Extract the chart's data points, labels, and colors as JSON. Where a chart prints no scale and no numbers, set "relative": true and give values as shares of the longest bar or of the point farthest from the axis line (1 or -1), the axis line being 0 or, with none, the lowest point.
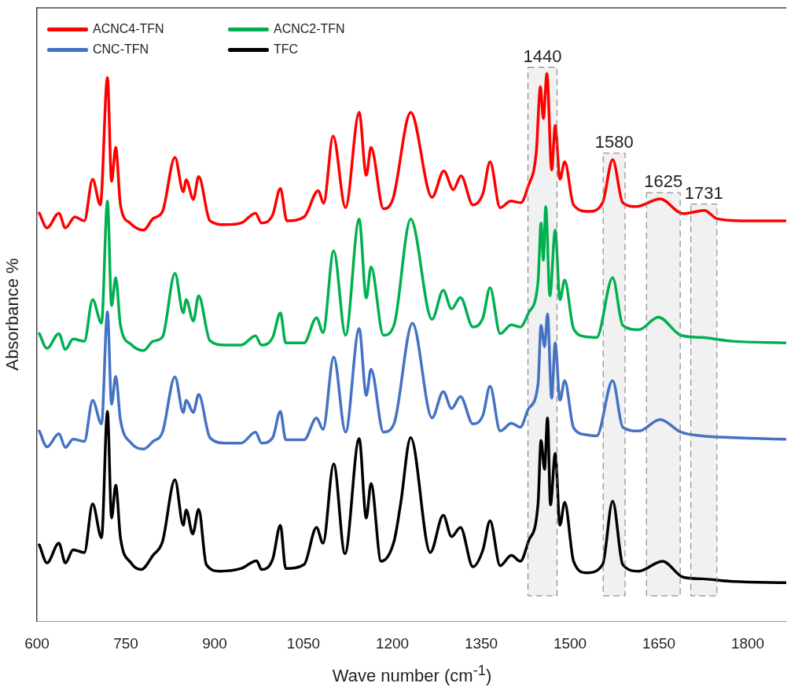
{
  "chart_data": {
    "type": "line",
    "relative": true,
    "xlabel": "Wave number (cm$^{-1}$)",
    "ylabel": "Absorbance %",
    "xlim": [
      600,
      1865
    ],
    "xticks": [
      600,
      750,
      900,
      1050,
      1200,
      1350,
      1500,
      1650,
      1800
    ],
    "legend": "top left",
    "grid": false,
    "marker": "none",
    "line_style": "solid",
    "bands": [
      {
        "axis": "x",
        "from": 1429,
        "to": 1478,
        "label": "1440"
      },
      {
        "axis": "x",
        "from": 1556,
        "to": 1593,
        "label": "1580"
      },
      {
        "axis": "x",
        "from": 1629,
        "to": 1686,
        "label": "1625"
      },
      {
        "axis": "x",
        "from": 1704,
        "to": 1748,
        "label": "1731"
      }
    ],
    "series": [
      {
        "name": "ACNC4-TFN",
        "color": "#ff0000",
        "x": [
          604,
          617,
          637,
          648,
          664,
          680,
          694,
          707,
          719,
          726,
          733,
          741,
          757,
          780,
          796,
          812,
          833,
          847,
          852,
          864,
          873,
          892,
          918,
          945,
          969,
          979,
          998,
          1011,
          1022,
          1051,
          1075,
          1084,
          1100,
          1121,
          1144,
          1156,
          1164,
          1185,
          1201,
          1231,
          1267,
          1287,
          1303,
          1316,
          1336,
          1353,
          1365,
          1382,
          1400,
          1417,
          1429,
          1443,
          1450,
          1455,
          1461,
          1469,
          1475,
          1483,
          1491,
          1506,
          1532,
          1555,
          1572,
          1589,
          1612,
          1652,
          1691,
          1727,
          1748,
          1793,
          1864
        ],
        "values": [
          0.745,
          0.718,
          0.745,
          0.718,
          0.738,
          0.731,
          0.807,
          0.76,
          0.993,
          0.803,
          0.865,
          0.76,
          0.727,
          0.714,
          0.735,
          0.748,
          0.847,
          0.784,
          0.806,
          0.77,
          0.812,
          0.731,
          0.724,
          0.727,
          0.745,
          0.727,
          0.742,
          0.79,
          0.731,
          0.738,
          0.786,
          0.763,
          0.886,
          0.755,
          0.929,
          0.814,
          0.865,
          0.753,
          0.771,
          0.929,
          0.774,
          0.822,
          0.788,
          0.813,
          0.76,
          0.781,
          0.839,
          0.755,
          0.767,
          0.764,
          0.793,
          0.856,
          0.976,
          0.918,
          1.0,
          0.824,
          0.905,
          0.807,
          0.839,
          0.76,
          0.748,
          0.764,
          0.843,
          0.764,
          0.757,
          0.771,
          0.744,
          0.75,
          0.735,
          0.731,
          0.731
        ]
      },
      {
        "name": "ACNC2-TFN",
        "color": "#00b050",
        "x": [
          604,
          617,
          637,
          648,
          661,
          680,
          694,
          709,
          719,
          726,
          733,
          741,
          759,
          780,
          796,
          812,
          833,
          847,
          852,
          864,
          873,
          892,
          918,
          945,
          969,
          979,
          998,
          1011,
          1020,
          1051,
          1072,
          1083,
          1101,
          1121,
          1144,
          1156,
          1164,
          1185,
          1203,
          1231,
          1267,
          1286,
          1300,
          1315,
          1336,
          1353,
          1365,
          1382,
          1401,
          1416,
          1430,
          1446,
          1451,
          1455,
          1459,
          1466,
          1475,
          1483,
          1491,
          1506,
          1528,
          1545,
          1572,
          1589,
          1616,
          1649,
          1687,
          1722,
          1775,
          1864
        ],
        "values": [
          0.525,
          0.498,
          0.525,
          0.496,
          0.515,
          0.511,
          0.587,
          0.544,
          0.767,
          0.576,
          0.627,
          0.54,
          0.505,
          0.494,
          0.511,
          0.519,
          0.635,
          0.563,
          0.587,
          0.548,
          0.594,
          0.512,
          0.504,
          0.504,
          0.521,
          0.504,
          0.518,
          0.563,
          0.508,
          0.508,
          0.554,
          0.527,
          0.676,
          0.522,
          0.734,
          0.59,
          0.647,
          0.522,
          0.541,
          0.734,
          0.551,
          0.604,
          0.57,
          0.591,
          0.537,
          0.554,
          0.609,
          0.525,
          0.541,
          0.537,
          0.563,
          0.62,
          0.727,
          0.659,
          0.757,
          0.594,
          0.714,
          0.587,
          0.623,
          0.534,
          0.519,
          0.518,
          0.627,
          0.54,
          0.532,
          0.555,
          0.522,
          0.518,
          0.511,
          0.508
        ]
      },
      {
        "name": "CNC-TFN",
        "color": "#4472c4",
        "x": [
          604,
          617,
          637,
          648,
          661,
          680,
          694,
          709,
          719,
          726,
          733,
          741,
          759,
          780,
          796,
          812,
          833,
          847,
          852,
          864,
          873,
          892,
          918,
          945,
          969,
          979,
          998,
          1011,
          1020,
          1051,
          1072,
          1083,
          1101,
          1121,
          1144,
          1156,
          1164,
          1185,
          1203,
          1234,
          1267,
          1286,
          1300,
          1315,
          1336,
          1353,
          1365,
          1382,
          1401,
          1416,
          1430,
          1446,
          1451,
          1457,
          1462,
          1469,
          1475,
          1483,
          1491,
          1506,
          1528,
          1545,
          1572,
          1589,
          1616,
          1652,
          1687,
          1722,
          1775,
          1864
        ],
        "values": [
          0.347,
          0.318,
          0.342,
          0.317,
          0.332,
          0.328,
          0.403,
          0.36,
          0.565,
          0.396,
          0.447,
          0.367,
          0.325,
          0.314,
          0.328,
          0.345,
          0.446,
          0.381,
          0.403,
          0.381,
          0.414,
          0.335,
          0.325,
          0.325,
          0.345,
          0.325,
          0.335,
          0.383,
          0.331,
          0.331,
          0.371,
          0.35,
          0.482,
          0.345,
          0.534,
          0.412,
          0.46,
          0.345,
          0.361,
          0.544,
          0.371,
          0.419,
          0.388,
          0.41,
          0.36,
          0.376,
          0.429,
          0.347,
          0.361,
          0.354,
          0.388,
          0.433,
          0.54,
          0.501,
          0.561,
          0.407,
          0.508,
          0.403,
          0.439,
          0.353,
          0.34,
          0.338,
          0.439,
          0.354,
          0.347,
          0.368,
          0.345,
          0.338,
          0.335,
          0.332
        ]
      },
      {
        "name": "TFC",
        "color": "#000000",
        "x": [
          604,
          617,
          637,
          648,
          661,
          680,
          694,
          709,
          719,
          726,
          733,
          741,
          759,
          776,
          796,
          812,
          833,
          847,
          852,
          863,
          873,
          886,
          909,
          945,
          971,
          979,
          998,
          1011,
          1020,
          1051,
          1072,
          1083,
          1101,
          1120,
          1144,
          1156,
          1164,
          1181,
          1203,
          1214,
          1231,
          1264,
          1286,
          1300,
          1315,
          1336,
          1353,
          1365,
          1382,
          1401,
          1416,
          1430,
          1446,
          1451,
          1457,
          1462,
          1467,
          1475,
          1483,
          1491,
          1506,
          1528,
          1555,
          1572,
          1589,
          1616,
          1656,
          1691,
          1722,
          1775,
          1864
        ],
        "values": [
          0.139,
          0.106,
          0.142,
          0.106,
          0.13,
          0.125,
          0.214,
          0.152,
          0.383,
          0.188,
          0.248,
          0.152,
          0.106,
          0.094,
          0.12,
          0.145,
          0.258,
          0.175,
          0.203,
          0.159,
          0.204,
          0.103,
          0.091,
          0.096,
          0.11,
          0.094,
          0.113,
          0.175,
          0.096,
          0.103,
          0.171,
          0.142,
          0.287,
          0.123,
          0.333,
          0.188,
          0.251,
          0.109,
          0.146,
          0.214,
          0.335,
          0.125,
          0.193,
          0.154,
          0.171,
          0.099,
          0.13,
          0.183,
          0.101,
          0.12,
          0.109,
          0.146,
          0.214,
          0.33,
          0.277,
          0.371,
          0.212,
          0.306,
          0.175,
          0.217,
          0.109,
          0.088,
          0.103,
          0.219,
          0.103,
          0.091,
          0.109,
          0.08,
          0.077,
          0.072,
          0.07
        ]
      }
    ]
  }
}
